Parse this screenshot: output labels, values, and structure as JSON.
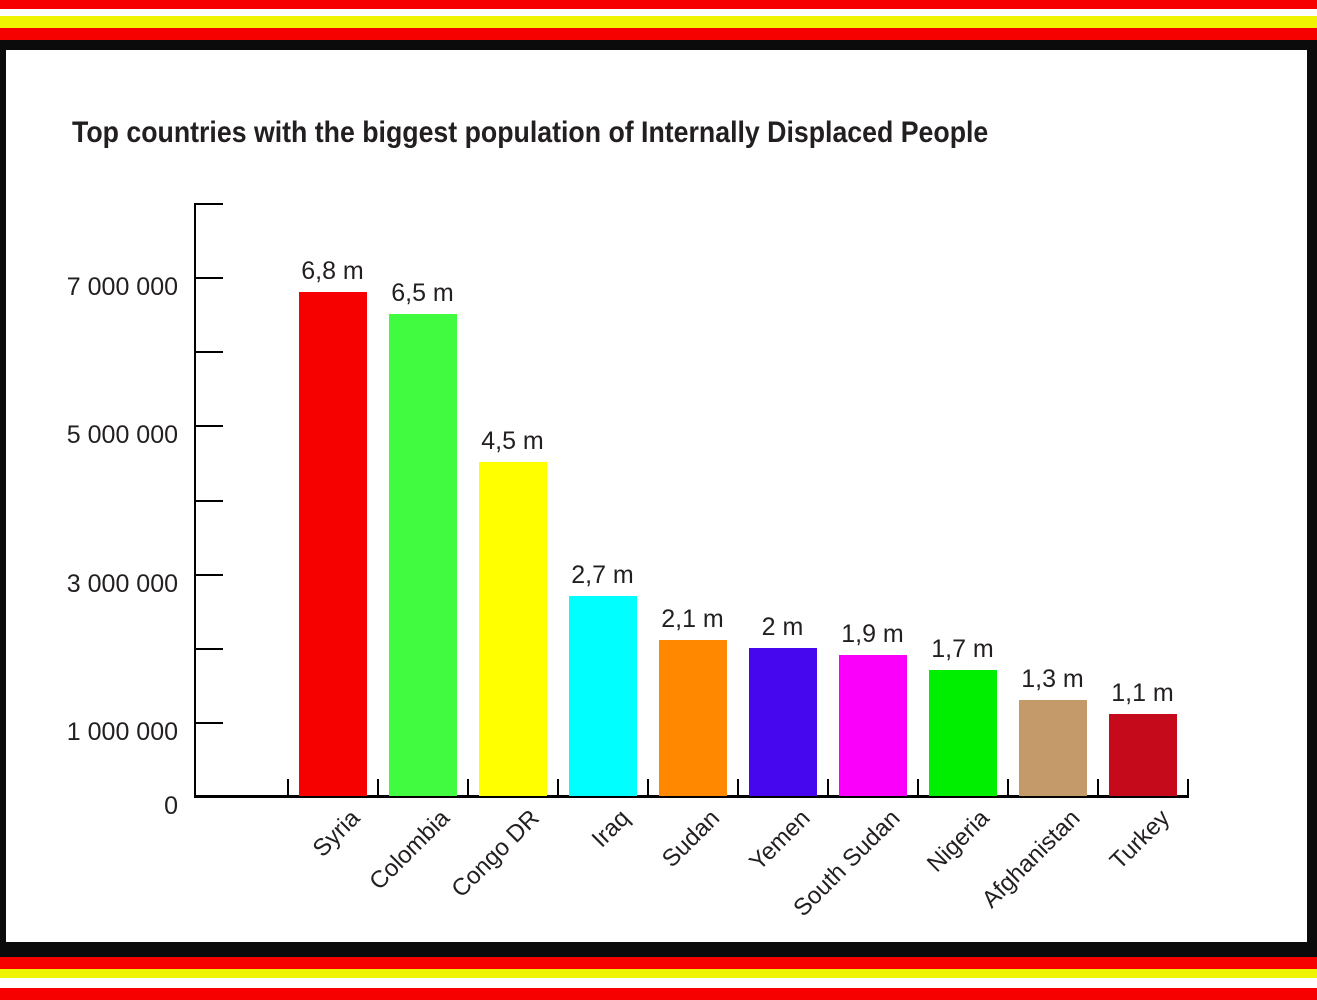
{
  "palette": {
    "red": "#F70000",
    "yellow": "#EFF400",
    "black": "#0B0B0B",
    "white": "#FFFFFF",
    "text": "#231F20"
  },
  "chart_data": {
    "type": "bar",
    "title": "Top countries with the biggest population of Internally Displaced People",
    "categories": [
      "Syria",
      "Colombia",
      "Congo DR",
      "Iraq",
      "Sudan",
      "Yemen",
      "South Sudan",
      "Nigeria",
      "Afghanistan",
      "Turkey"
    ],
    "values": [
      6800000,
      6500000,
      4500000,
      2700000,
      2100000,
      2000000,
      1900000,
      1700000,
      1300000,
      1100000
    ],
    "value_labels": [
      "6,8 m",
      "6,5 m",
      "4,5 m",
      "2,7 m",
      "2,1 m",
      "2 m",
      "1,9 m",
      "1,7 m",
      "1,3 m",
      "1,1 m"
    ],
    "bar_colors": [
      "#F70000",
      "#40FB40",
      "#FFFF00",
      "#00FFFF",
      "#FF8800",
      "#4607EE",
      "#FA00FA",
      "#00EF00",
      "#C49A6B",
      "#C50A1C"
    ],
    "xlabel": "",
    "ylabel": "",
    "ylim": [
      0,
      8000000
    ],
    "grid": false,
    "legend": false,
    "y_axis": {
      "tick_interval": 1000000,
      "labels": [
        {
          "value": 7000000,
          "label": "7 000 000"
        },
        {
          "value": 5000000,
          "label": "5 000 000"
        },
        {
          "value": 3000000,
          "label": "3 000 000"
        },
        {
          "value": 1000000,
          "label": "1 000 000"
        },
        {
          "value": 0,
          "label": "0"
        }
      ]
    }
  }
}
